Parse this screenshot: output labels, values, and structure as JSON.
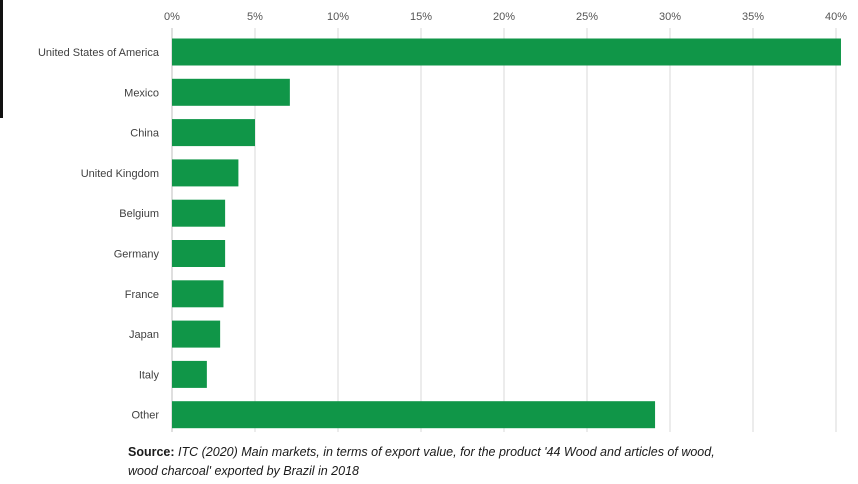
{
  "chart_data": {
    "type": "bar",
    "orientation": "horizontal",
    "categories": [
      "United States of America",
      "Mexico",
      "China",
      "United Kingdom",
      "Belgium",
      "Germany",
      "France",
      "Japan",
      "Italy",
      "Other"
    ],
    "values": [
      40.3,
      7.1,
      5.0,
      4.0,
      3.2,
      3.2,
      3.1,
      2.9,
      2.1,
      29.1
    ],
    "unit": "%",
    "xlim": [
      0,
      40
    ],
    "x_ticks": [
      "0%",
      "5%",
      "10%",
      "15%",
      "20%",
      "25%",
      "30%",
      "35%",
      "40%"
    ],
    "x_tick_values": [
      0,
      5,
      10,
      15,
      20,
      25,
      30,
      35,
      40
    ],
    "x_axis_position": "top",
    "grid": "vertical",
    "bar_color": "#109648"
  },
  "source": {
    "label": "Source:",
    "text": "ITC (2020) Main markets, in terms of export value, for the product '44 Wood and articles of wood, wood charcoal' exported by Brazil in 2018"
  }
}
